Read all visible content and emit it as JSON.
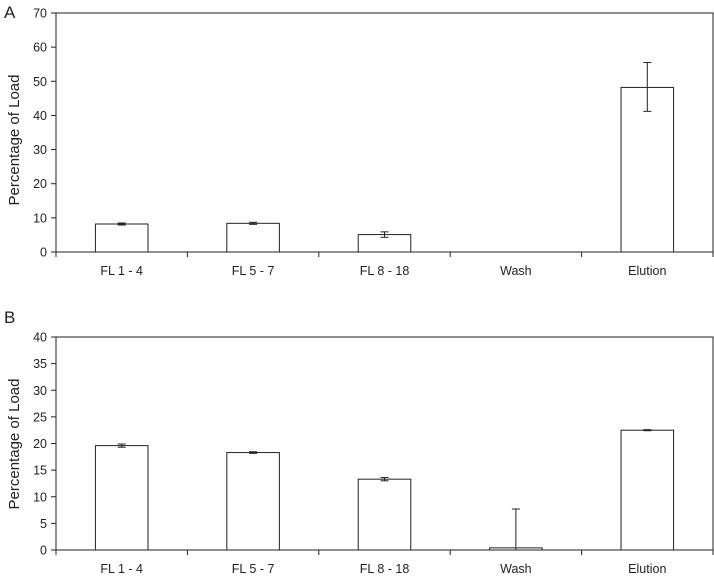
{
  "chart_data": [
    {
      "panel_label": "A",
      "type": "bar",
      "categories": [
        "FL 1 - 4",
        "FL 5 - 7",
        "FL 8 - 18",
        "Wash",
        "Elution"
      ],
      "values": [
        8.2,
        8.4,
        5.1,
        0,
        48.2
      ],
      "error_low": [
        0.3,
        0.3,
        0.8,
        0,
        7.0
      ],
      "error_high": [
        0.3,
        0.3,
        0.8,
        0,
        7.3
      ],
      "title": "",
      "xlabel": "",
      "ylabel": "Percentage of Load",
      "ylim": [
        0,
        70
      ],
      "yticks": [
        0,
        10,
        20,
        30,
        40,
        50,
        60,
        70
      ],
      "grid": false,
      "legend": "none"
    },
    {
      "panel_label": "B",
      "type": "bar",
      "categories": [
        "FL 1 - 4",
        "FL 5 - 7",
        "FL 8 - 18",
        "Wash",
        "Elution"
      ],
      "values": [
        19.6,
        18.3,
        13.3,
        0.4,
        22.5
      ],
      "error_low": [
        0.3,
        0.15,
        0.3,
        0.4,
        0.1
      ],
      "error_high": [
        0.3,
        0.15,
        0.3,
        7.3,
        0.1
      ],
      "title": "",
      "xlabel": "",
      "ylabel": "Percentage of Load",
      "ylim": [
        0,
        40
      ],
      "yticks": [
        0,
        5,
        10,
        15,
        20,
        25,
        30,
        35,
        40
      ],
      "grid": false,
      "legend": "none"
    }
  ],
  "colors": {
    "axis": "#222222",
    "bar_fill": "#ffffff",
    "bar_stroke": "#222222"
  }
}
